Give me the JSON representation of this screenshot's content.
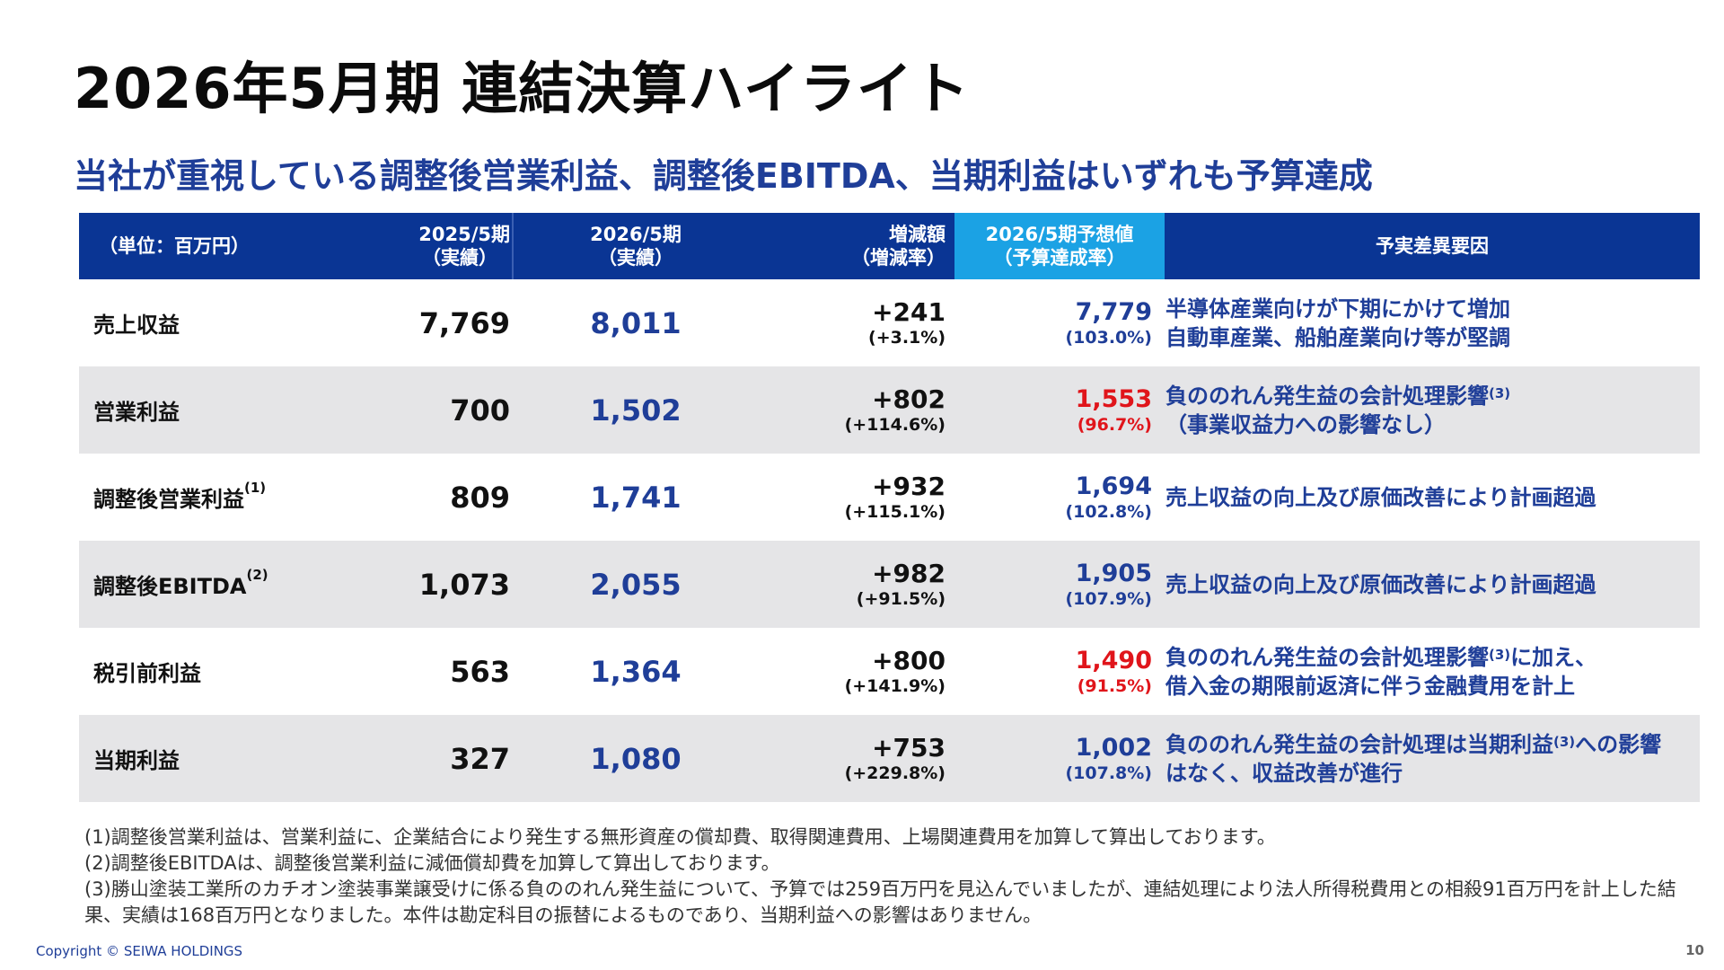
{
  "title": "2026年5月期 連結決算ハイライト",
  "subtitle": "当社が重視している調整後営業利益、調整後EBITDA、当期利益はいずれも予算達成",
  "table": {
    "unit": "（単位：百万円）",
    "h_2025_1": "2025/5期",
    "h_2025_2": "（実績）",
    "h_2026_1": "2026/5期",
    "h_2026_2": "（実績）",
    "h_diff_1": "増減額",
    "h_diff_2": "（増減率）",
    "h_fc_1": "2026/5期予想値",
    "h_fc_2": "（予算達成率）",
    "h_reason": "予実差異要因",
    "rows": [
      {
        "label": "売上収益",
        "note": "",
        "v2025": "7,769",
        "v2026": "8,011",
        "diff": "+241",
        "rate": "(+3.1%)",
        "forecast": "7,779",
        "achieve": "(103.0%)",
        "fc_color": "blue",
        "reason_1": "半導体産業向けが下期にかけて増加",
        "reason_1_sup": "",
        "reason_1_tail": "",
        "reason_2": "自動車産業、船舶産業向け等が堅調"
      },
      {
        "label": "営業利益",
        "note": "",
        "v2025": "700",
        "v2026": "1,502",
        "diff": "+802",
        "rate": "(+114.6%)",
        "forecast": "1,553",
        "achieve": "(96.7%)",
        "fc_color": "red",
        "reason_1": "負ののれん発生益の会計処理影響",
        "reason_1_sup": "(3)",
        "reason_1_tail": "",
        "reason_2": "（事業収益力への影響なし）"
      },
      {
        "label": "調整後営業利益",
        "note": "(1)",
        "v2025": "809",
        "v2026": "1,741",
        "diff": "+932",
        "rate": "(+115.1%)",
        "forecast": "1,694",
        "achieve": "(102.8%)",
        "fc_color": "blue",
        "reason_1": "売上収益の向上及び原価改善により計画超過",
        "reason_1_sup": "",
        "reason_1_tail": "",
        "reason_2": ""
      },
      {
        "label": "調整後EBITDA",
        "note": "(2)",
        "v2025": "1,073",
        "v2026": "2,055",
        "diff": "+982",
        "rate": "(+91.5%)",
        "forecast": "1,905",
        "achieve": "(107.9%)",
        "fc_color": "blue",
        "reason_1": "売上収益の向上及び原価改善により計画超過",
        "reason_1_sup": "",
        "reason_1_tail": "",
        "reason_2": ""
      },
      {
        "label": "税引前利益",
        "note": "",
        "v2025": "563",
        "v2026": "1,364",
        "diff": "+800",
        "rate": "(+141.9%)",
        "forecast": "1,490",
        "achieve": "(91.5%)",
        "fc_color": "red",
        "reason_1": "負ののれん発生益の会計処理影響",
        "reason_1_sup": "(3)",
        "reason_1_tail": "に加え、",
        "reason_2": "借入金の期限前返済に伴う金融費用を計上"
      },
      {
        "label": "当期利益",
        "note": "",
        "v2025": "327",
        "v2026": "1,080",
        "diff": "+753",
        "rate": "(+229.8%)",
        "forecast": "1,002",
        "achieve": "(107.8%)",
        "fc_color": "blue",
        "reason_1": "負ののれん発生益の会計処理は当期利益",
        "reason_1_sup": "(3)",
        "reason_1_tail": "への影響",
        "reason_2": "はなく、収益改善が進行"
      }
    ]
  },
  "notes": [
    "(1)調整後営業利益は、営業利益に、企業結合により発生する無形資産の償却費、取得関連費用、上場関連費用を加算して算出しております。",
    "(2)調整後EBITDAは、調整後営業利益に減価償却費を加算して算出しております。",
    "(3)勝山塗装工業所のカチオン塗装事業譲受けに係る負ののれん発生益について、予算では259百万円を見込んでいましたが、連結処理により法人所得税費用との相殺91百万円を計上した結果、実績は168百万円となりました。本件は勘定科目の振替によるものであり、当期利益への影響はありません。"
  ],
  "footer": {
    "copyright": "Copyright © SEIWA HOLDINGS",
    "page": "10"
  },
  "colors": {
    "header_bg": "#0a3594",
    "highlight_bg": "#1ba2e4",
    "accent_blue": "#1f3e98",
    "accent_red": "#e0151b",
    "alt_row": "#e5e5e7"
  }
}
